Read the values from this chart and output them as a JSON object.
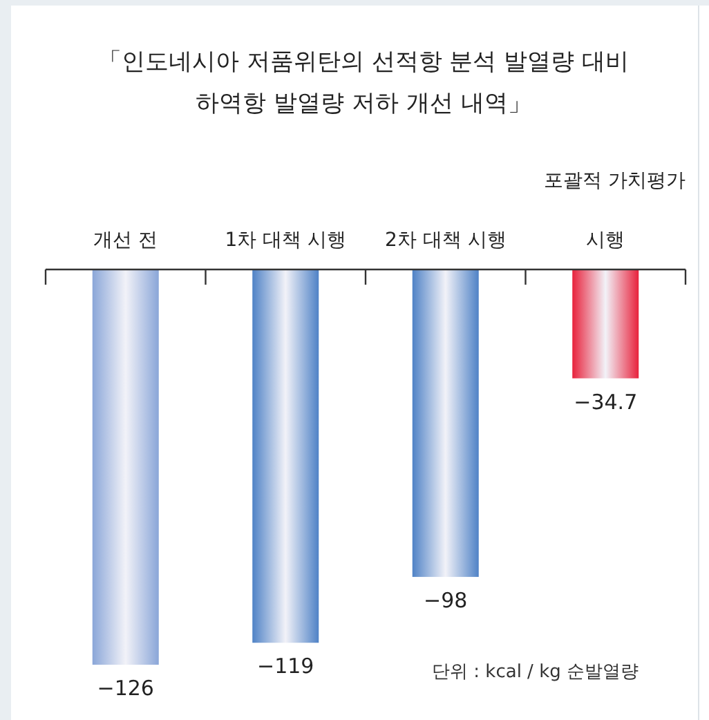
{
  "chart_data": {
    "type": "bar",
    "title": "「인도네시아 저품위탄의 선적항 분석 발열량 대비 하역항 발열량 저하 개선 내역」",
    "categories": [
      "개선 전",
      "1차 대책 시행",
      "2차 대책 시행",
      "포괄적 가치평가 시행"
    ],
    "values": [
      -126,
      -119,
      -98,
      -34.7
    ],
    "colors": [
      "#8aa6d8",
      "#4f82c6",
      "#4f82c6",
      "#e8223c"
    ],
    "data_labels": true,
    "annotations": [
      "단위 : kcal / kg 순발열량"
    ]
  }
}
